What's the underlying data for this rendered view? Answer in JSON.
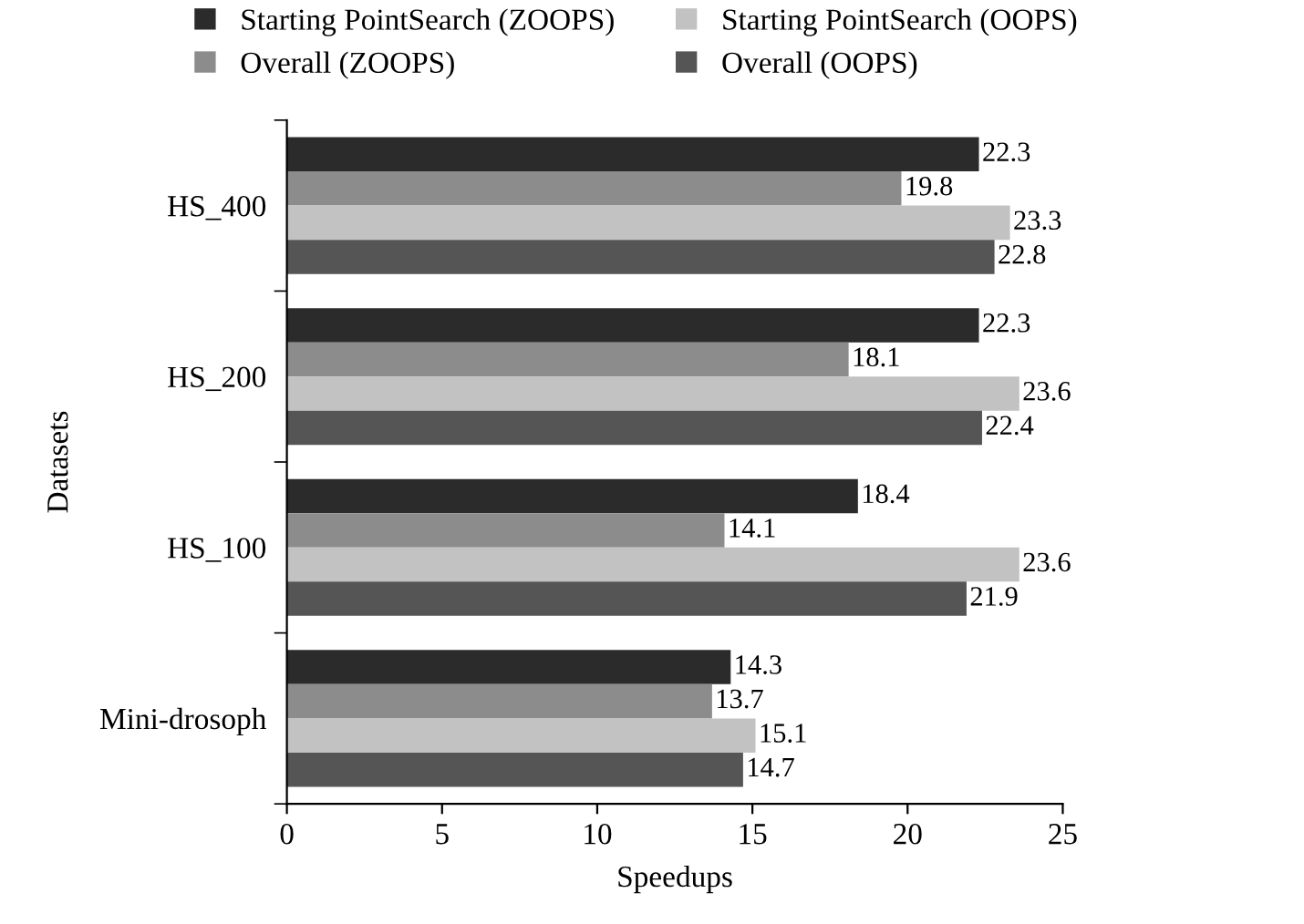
{
  "chart_data": {
    "type": "bar",
    "orientation": "horizontal",
    "xlabel": "Speedups",
    "ylabel": "Datasets",
    "categories": [
      "HS_400",
      "HS_200",
      "HS_100",
      "Mini-drosoph"
    ],
    "series": [
      {
        "name": "Starting PointSearch (ZOOPS)",
        "color": "#2b2b2b",
        "values": [
          22.3,
          22.3,
          18.4,
          14.3
        ]
      },
      {
        "name": "Overall (ZOOPS)",
        "color": "#8c8c8c",
        "values": [
          19.8,
          18.1,
          14.1,
          13.7
        ]
      },
      {
        "name": "Starting PointSearch (OOPS)",
        "color": "#c2c2c2",
        "values": [
          23.3,
          23.6,
          23.6,
          15.1
        ]
      },
      {
        "name": "Overall (OOPS)",
        "color": "#555555",
        "values": [
          22.8,
          22.4,
          21.9,
          14.7
        ]
      }
    ],
    "xlim": [
      0,
      25
    ],
    "xticks": [
      0,
      5,
      10,
      15,
      20,
      25
    ],
    "grid": false,
    "legend": "top",
    "data_labels": true
  }
}
